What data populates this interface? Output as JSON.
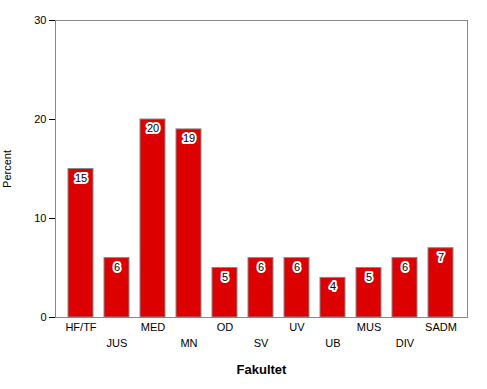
{
  "chart_data": {
    "type": "bar",
    "categories": [
      "HF/TF",
      "JUS",
      "MED",
      "MN",
      "OD",
      "SV",
      "UV",
      "UB",
      "MUS",
      "DIV",
      "SADM"
    ],
    "values": [
      15,
      6,
      20,
      19,
      5,
      6,
      6,
      4,
      5,
      6,
      7
    ],
    "color": "#dd0000",
    "xlabel": "Fakultet",
    "ylabel": "Percent",
    "ylim": [
      0,
      30
    ],
    "yticks": [
      0,
      10,
      20,
      30
    ],
    "grid": false,
    "data_labels": true
  }
}
